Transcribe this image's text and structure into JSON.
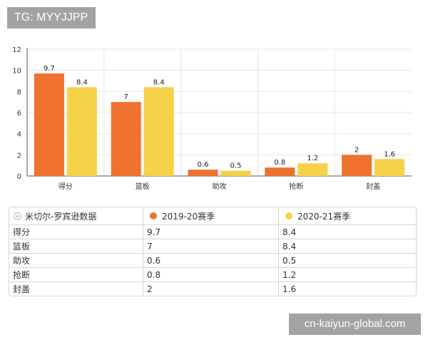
{
  "watermarks": {
    "top": "TG: MYYJJPP",
    "bottom": "cn-kaiyun-global.com"
  },
  "colors": {
    "series1": "#ee7130",
    "series2": "#f6d24a",
    "grid": "#e6e6e6",
    "axis": "#555555"
  },
  "chart_data": {
    "type": "bar",
    "categories": [
      "得分",
      "篮板",
      "助攻",
      "抢断",
      "封盖"
    ],
    "series": [
      {
        "name": "2019-20赛季",
        "values": [
          9.7,
          7,
          0.6,
          0.8,
          2
        ],
        "labels": [
          "9.7",
          "7",
          "0.6",
          "0.8",
          "2"
        ]
      },
      {
        "name": "2020-21赛季",
        "values": [
          8.4,
          8.4,
          0.5,
          1.2,
          1.6
        ],
        "labels": [
          "8.4",
          "8.4",
          "0.5",
          "1.2",
          "1.6"
        ]
      }
    ],
    "yticks": [
      "0",
      "2",
      "4",
      "6",
      "8",
      "10",
      "12"
    ],
    "ylim": [
      0,
      12
    ],
    "grid": true,
    "title": "",
    "xlabel": "",
    "ylabel": ""
  },
  "table": {
    "title": "米切尔-罗宾逊数据",
    "series_headers": [
      "2019-20赛季",
      "2020-21赛季"
    ],
    "rows": [
      {
        "label": "得分",
        "v1": "9.7",
        "v2": "8.4"
      },
      {
        "label": "篮板",
        "v1": "7",
        "v2": "8.4"
      },
      {
        "label": "助攻",
        "v1": "0.6",
        "v2": "0.5"
      },
      {
        "label": "抢断",
        "v1": "0.8",
        "v2": "1.2"
      },
      {
        "label": "封盖",
        "v1": "2",
        "v2": "1.6"
      }
    ]
  }
}
